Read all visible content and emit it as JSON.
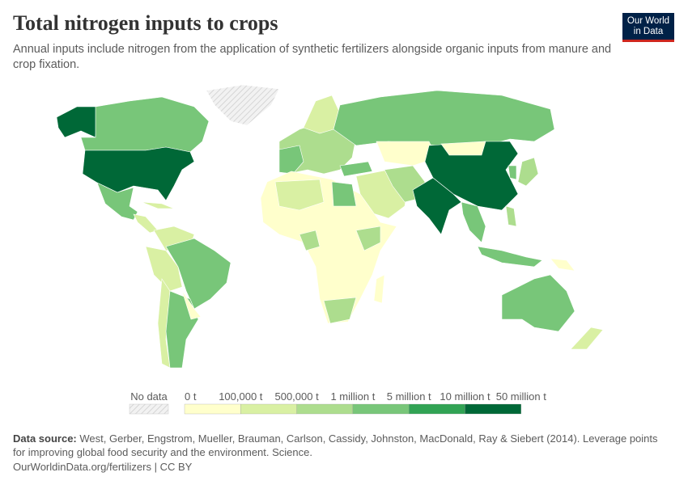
{
  "header": {
    "title": "Total nitrogen inputs to crops",
    "subtitle": "Annual inputs include nitrogen from the application of synthetic fertilizers alongside organic inputs from manure and crop fixation.",
    "logo": "Our World in Data"
  },
  "chart_data": {
    "type": "choropleth-map",
    "legend": {
      "no_data_label": "No data",
      "bins": [
        "0 t",
        "100,000 t",
        "500,000 t",
        "1 million t",
        "5 million t",
        "10 million t",
        "50 million t"
      ],
      "colors": [
        "#ffffcc",
        "#d9f0a3",
        "#addd8e",
        "#78c679",
        "#31a354",
        "#006837"
      ],
      "no_data_color": "#e6e6e6"
    }
  },
  "footer": {
    "source_label": "Data source:",
    "source": "West, Gerber, Engstrom, Mueller, Brauman, Carlson, Cassidy, Johnston, MacDonald, Ray & Siebert (2014). Leverage points for improving global food security and the environment. Science.",
    "url": "OurWorldinData.org/fertilizers | CC BY"
  }
}
